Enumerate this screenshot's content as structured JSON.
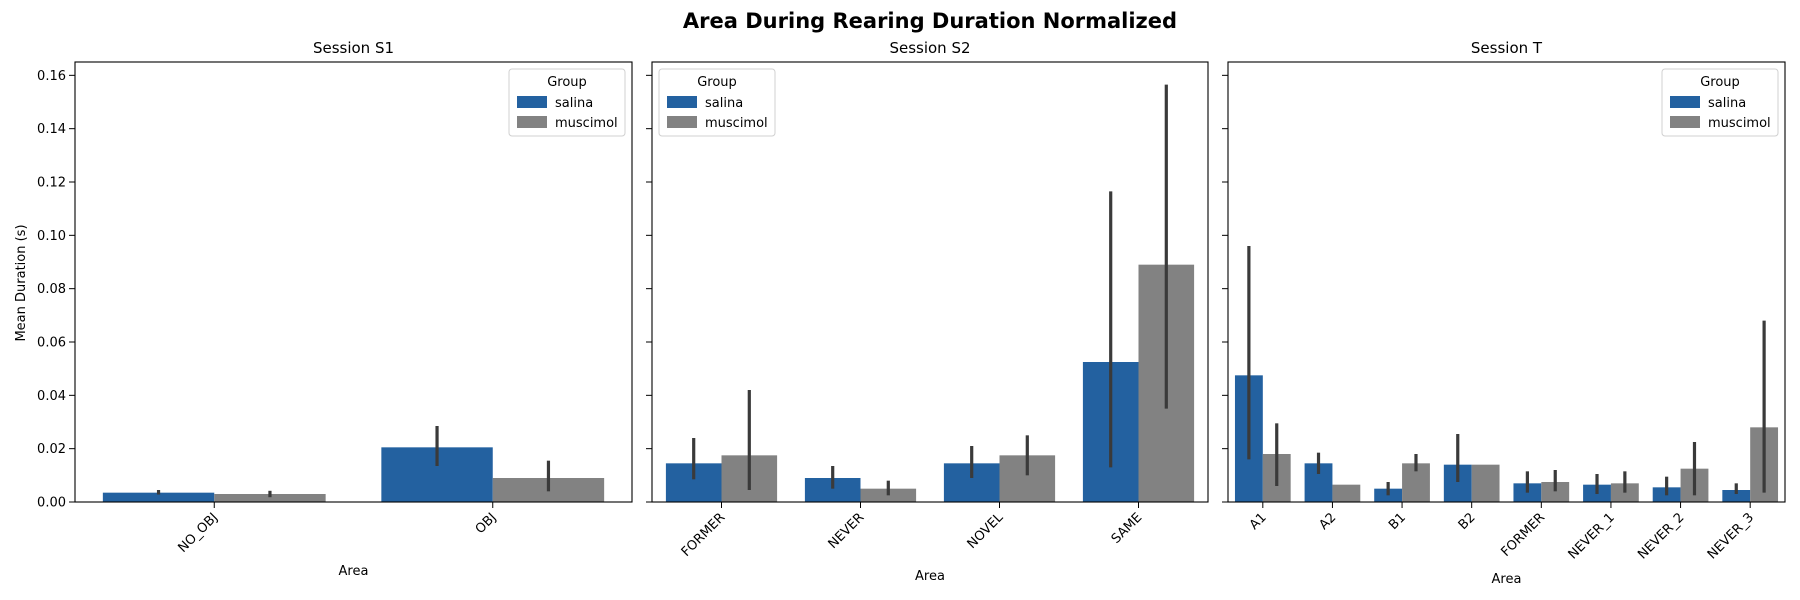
{
  "title": "Area During Rearing Duration Normalized",
  "ylabel": "Mean Duration (s)",
  "colors": {
    "salina": "#2361a0",
    "muscimol": "#828282",
    "errorbar": "#3a3a3a"
  },
  "yticks": [
    "0.00",
    "0.02",
    "0.04",
    "0.06",
    "0.08",
    "0.10",
    "0.12",
    "0.14",
    "0.16"
  ],
  "chart_data": [
    {
      "type": "bar",
      "title": "Session S1",
      "xlabel": "Area",
      "ylabel": "Mean Duration (s)",
      "ylim": [
        0,
        0.165
      ],
      "legend": {
        "title": "Group",
        "position": "top-right"
      },
      "categories": [
        "NO_OBJ",
        "OBJ"
      ],
      "series": [
        {
          "name": "salina",
          "values": [
            0.0035,
            0.0205
          ],
          "err_low": [
            0.0028,
            0.0135
          ],
          "err_high": [
            0.0045,
            0.0285
          ]
        },
        {
          "name": "muscimol",
          "values": [
            0.003,
            0.009
          ],
          "err_low": [
            0.0018,
            0.004
          ],
          "err_high": [
            0.0042,
            0.0155
          ]
        }
      ]
    },
    {
      "type": "bar",
      "title": "Session S2",
      "xlabel": "Area",
      "ylim": [
        0,
        0.165
      ],
      "legend": {
        "title": "Group",
        "position": "top-left"
      },
      "categories": [
        "FORMER",
        "NEVER",
        "NOVEL",
        "SAME"
      ],
      "series": [
        {
          "name": "salina",
          "values": [
            0.0145,
            0.009,
            0.0145,
            0.0525
          ],
          "err_low": [
            0.0085,
            0.005,
            0.009,
            0.013
          ],
          "err_high": [
            0.024,
            0.0135,
            0.021,
            0.1165
          ]
        },
        {
          "name": "muscimol",
          "values": [
            0.0175,
            0.005,
            0.0175,
            0.089
          ],
          "err_low": [
            0.0045,
            0.0025,
            0.01,
            0.035
          ],
          "err_high": [
            0.042,
            0.008,
            0.025,
            0.1565
          ]
        }
      ]
    },
    {
      "type": "bar",
      "title": "Session T",
      "xlabel": "Area",
      "ylim": [
        0,
        0.165
      ],
      "legend": {
        "title": "Group",
        "position": "top-right"
      },
      "categories": [
        "A1",
        "A2",
        "B1",
        "B2",
        "FORMER",
        "NEVER_1",
        "NEVER_2",
        "NEVER_3"
      ],
      "series": [
        {
          "name": "salina",
          "values": [
            0.0475,
            0.0145,
            0.005,
            0.014,
            0.007,
            0.0065,
            0.0055,
            0.0045
          ],
          "err_low": [
            0.016,
            0.0105,
            0.0025,
            0.0075,
            0.0035,
            0.003,
            0.0025,
            0.003
          ],
          "err_high": [
            0.096,
            0.0185,
            0.0075,
            0.0255,
            0.0115,
            0.0105,
            0.0095,
            0.007
          ]
        },
        {
          "name": "muscimol",
          "values": [
            0.018,
            0.0065,
            0.0145,
            0.014,
            0.0075,
            0.007,
            0.0125,
            0.028
          ],
          "err_low": [
            0.006,
            0.0065,
            0.0115,
            0.014,
            0.004,
            0.0035,
            0.0025,
            0.0035
          ],
          "err_high": [
            0.0295,
            0.0065,
            0.018,
            0.014,
            0.012,
            0.0115,
            0.0225,
            0.068
          ]
        }
      ]
    }
  ]
}
